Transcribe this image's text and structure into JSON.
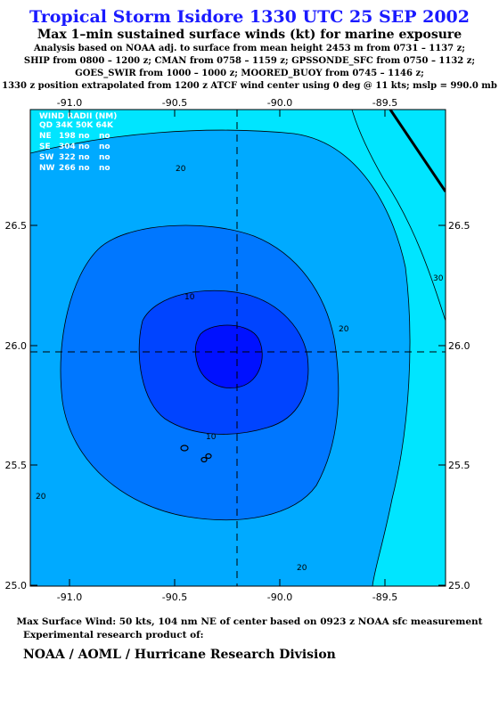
{
  "header": {
    "title": "Tropical Storm Isidore 1330 UTC 25 SEP 2002",
    "subtitle": "Max 1–min sustained surface winds (kt) for marine exposure",
    "info_lines": [
      "Analysis based on  NOAA adj. to surface from mean height 2453 m from 0731 – 1137 z;",
      "SHIP from 0800 – 1200 z;  CMAN from 0758 – 1159 z;  GPSSONDE_SFC from 0750 – 1132 z;",
      "GOES_SWIR from 1000 – 1000 z;  MOORED_BUOY from 0745 – 1146 z;",
      "1330 z position extrapolated from 1200 z ATCF wind center using 0 deg @ 11 kts; mslp = 990.0 mb"
    ]
  },
  "map": {
    "lon_range": [
      -91.2,
      -89.25
    ],
    "lat_range": [
      24.97,
      26.97
    ],
    "lon_ticks": [
      "-91.0",
      "-90.5",
      "-90.0",
      "-89.5"
    ],
    "lat_ticks": [
      "26.5",
      "26.0",
      "25.5",
      "25.0"
    ],
    "storm_center": {
      "lon": -90.2,
      "lat": 25.97
    },
    "contour_labels": [
      "20",
      "10",
      "10",
      "20",
      "30",
      "20",
      "20"
    ],
    "colors": {
      "light": "#00e5ff",
      "mid": "#00aaff",
      "dark": "#0077ff",
      "deeper": "#0044ff",
      "core": "#0011ff"
    }
  },
  "wind_radii": {
    "header1": "WIND RADII (NM)",
    "header2": "QD  34K  50K  64K",
    "rows": [
      {
        "q": "NE",
        "r34": "198",
        "r50": "no",
        "r64": "no"
      },
      {
        "q": "SE",
        "r34": "304",
        "r50": "no",
        "r64": "no"
      },
      {
        "q": "SW",
        "r34": "322",
        "r50": "no",
        "r64": "no"
      },
      {
        "q": "NW",
        "r34": "266",
        "r50": "no",
        "r64": "no"
      }
    ]
  },
  "footer": {
    "max_wind": "Max Surface Wind: 50 kts, 104 nm NE of center based on 0923 z NOAA sfc measurement",
    "experimental": "Experimental research product of:",
    "org": "NOAA / AOML / Hurricane Research Division"
  }
}
